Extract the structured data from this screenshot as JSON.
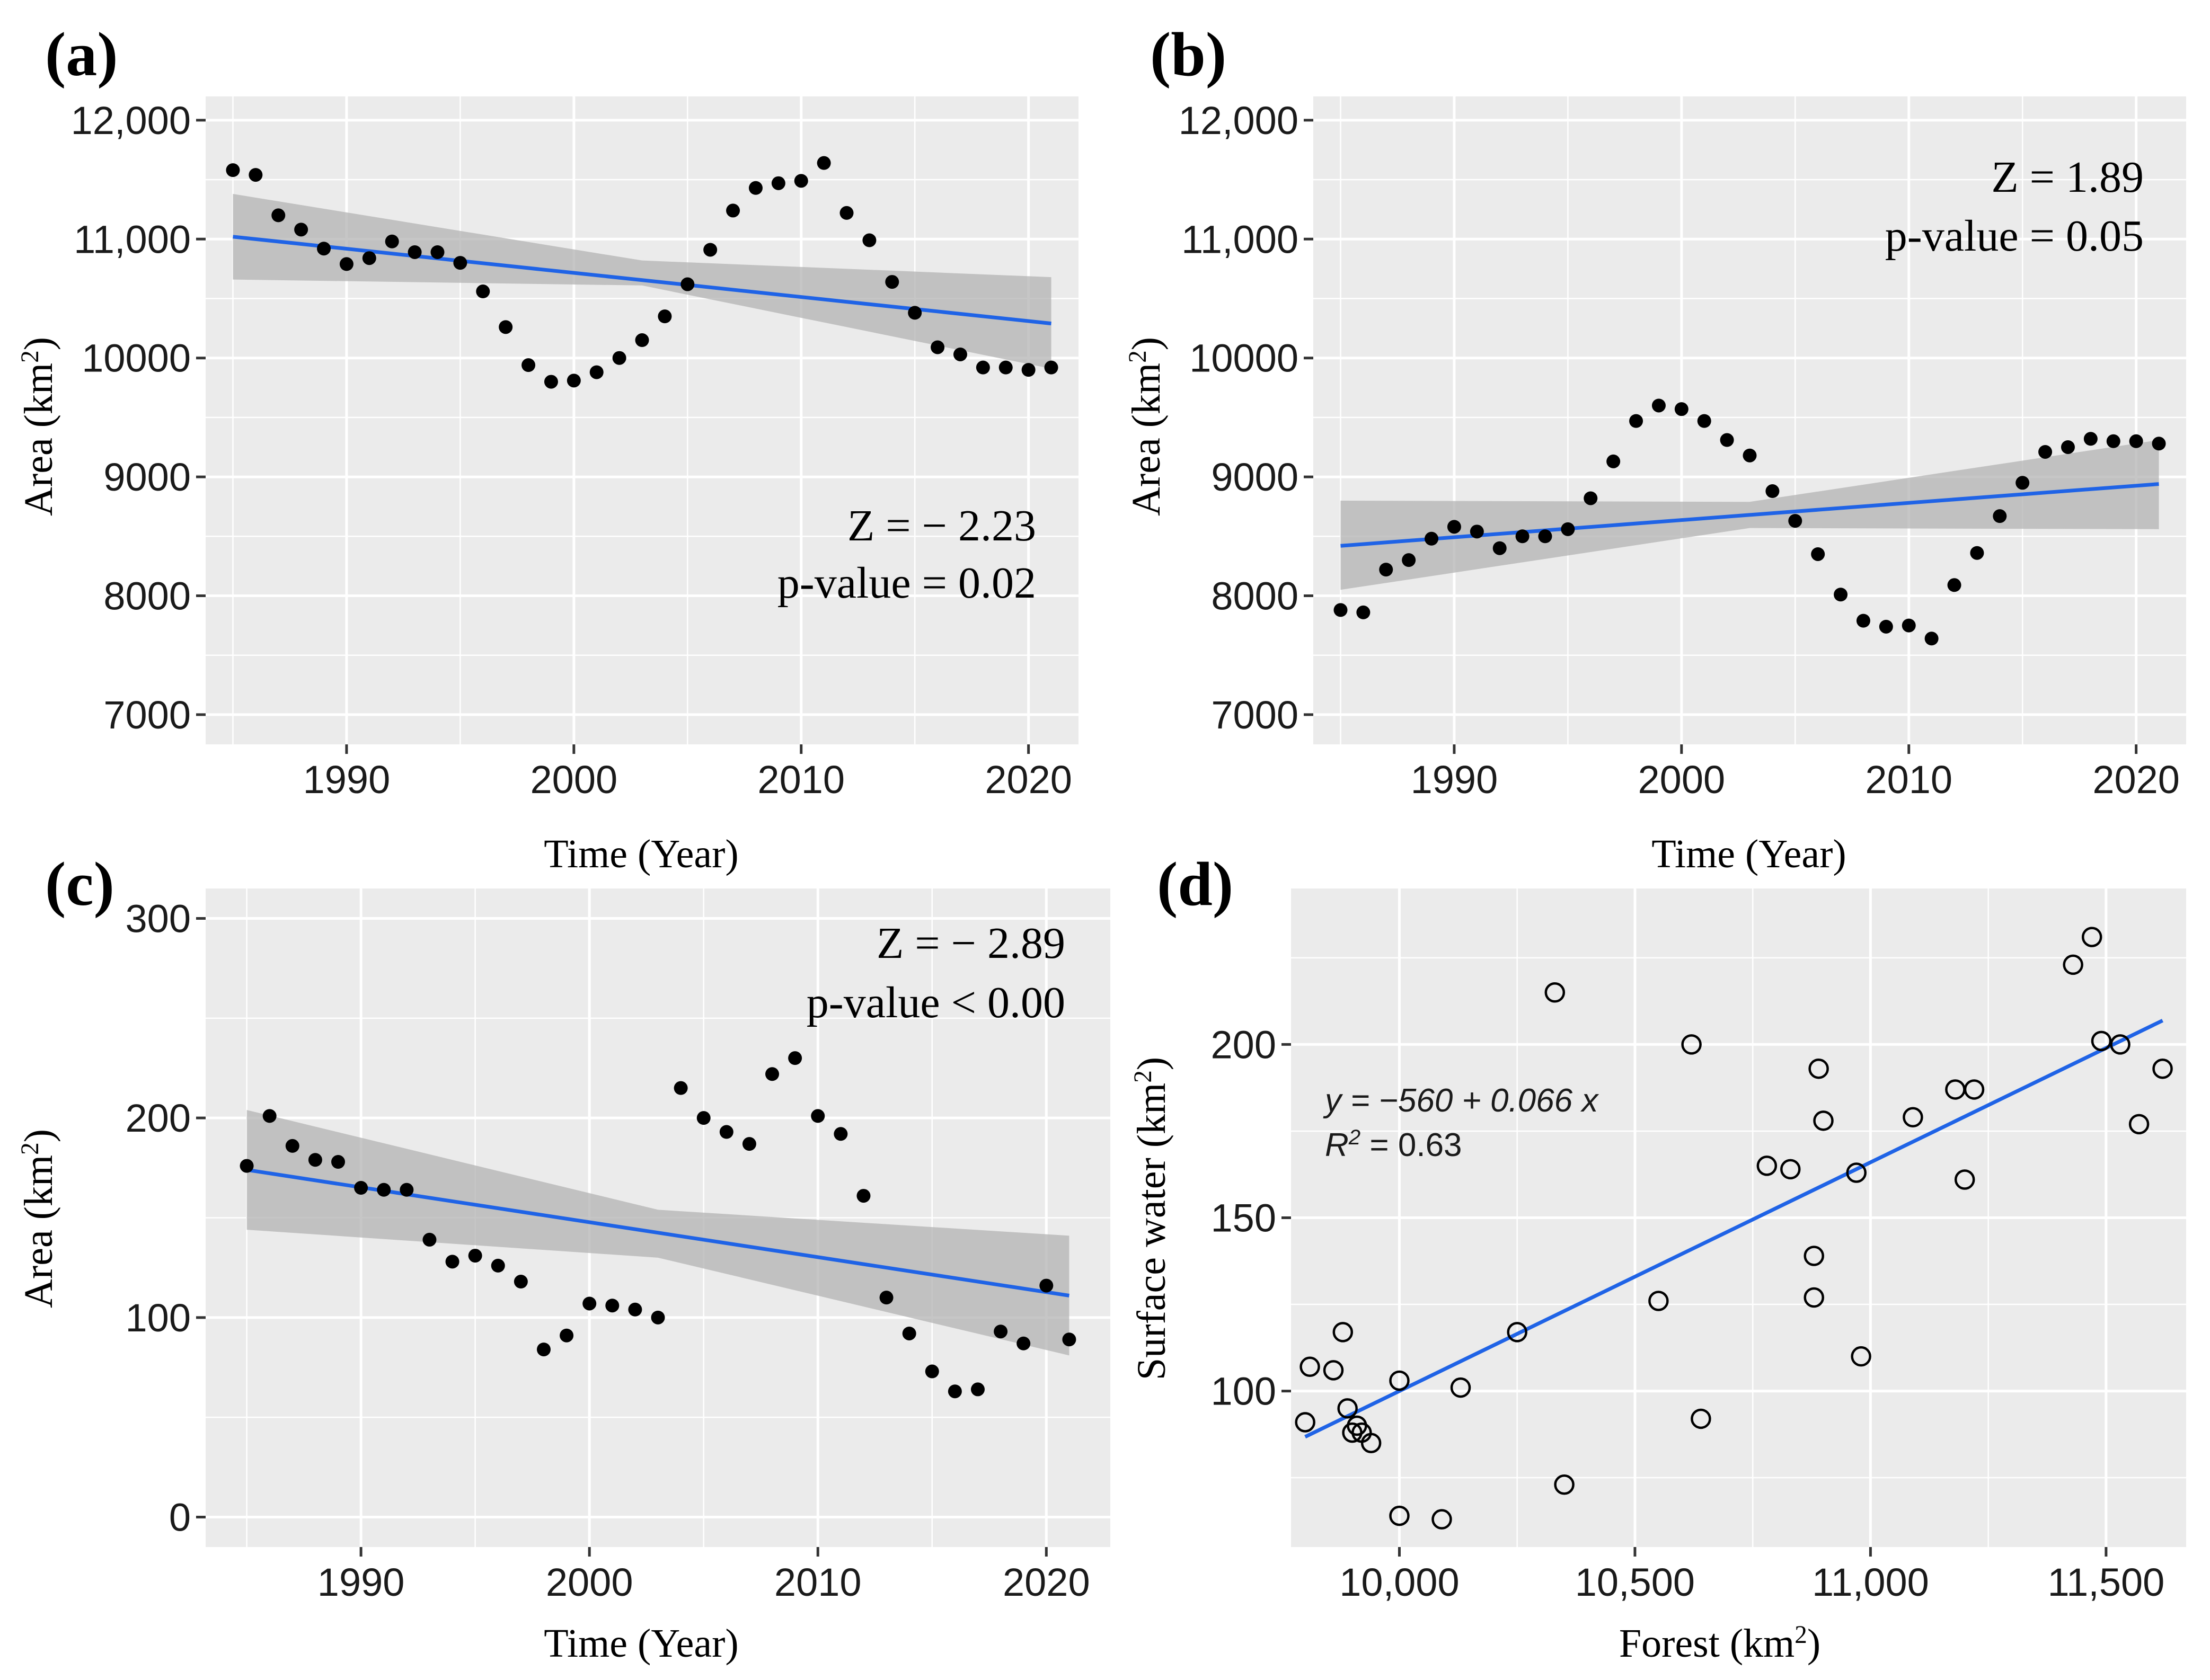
{
  "figure": {
    "charts": [
      {
        "id": "a",
        "tag": "(a)",
        "type": "scatter",
        "xlabel": "Time (Year)",
        "ylabel": "Area (km2)",
        "xlim": [
          1983.8,
          2022.2
        ],
        "ylim": [
          6750,
          12200
        ],
        "xticks": [
          1990,
          2000,
          2010,
          2020
        ],
        "xtick_labels": [
          "1990",
          "2000",
          "2010",
          "2020"
        ],
        "yticks": [
          7000,
          8000,
          9000,
          10000,
          11000,
          12000
        ],
        "ytick_labels": [
          "7000",
          "8000",
          "9000",
          "10000",
          "11,000",
          "12,000"
        ],
        "x": [
          1985,
          1986,
          1987,
          1988,
          1989,
          1990,
          1991,
          1992,
          1993,
          1994,
          1995,
          1996,
          1997,
          1998,
          1999,
          2000,
          2001,
          2002,
          2003,
          2004,
          2005,
          2006,
          2007,
          2008,
          2009,
          2010,
          2011,
          2012,
          2013,
          2014,
          2015,
          2016,
          2017,
          2018,
          2019,
          2020,
          2021
        ],
        "y": [
          11580,
          11540,
          11200,
          11080,
          10920,
          10790,
          10840,
          10980,
          10890,
          10890,
          10800,
          10560,
          10260,
          9940,
          9800,
          9810,
          9880,
          10000,
          10150,
          10350,
          10620,
          10910,
          11240,
          11430,
          11470,
          11490,
          11640,
          11220,
          10990,
          10640,
          10380,
          10090,
          10030,
          9920,
          9920,
          9900,
          9920
        ],
        "trend": {
          "x": [
            1985,
            2021
          ],
          "y": [
            11020,
            10290
          ]
        },
        "band": {
          "x": [
            1985,
            2003,
            2021
          ],
          "lower": [
            10660,
            10610,
            9910
          ],
          "upper": [
            11380,
            10820,
            10680
          ]
        },
        "annotation": [
          "Z = − 2.23",
          "p-value =  0.02"
        ],
        "annotation_position": "bottom-right"
      },
      {
        "id": "b",
        "tag": "(b)",
        "type": "scatter",
        "xlabel": "Time (Year)",
        "ylabel": "Area (km2)",
        "xlim": [
          1983.8,
          2022.2
        ],
        "ylim": [
          6750,
          12200
        ],
        "xticks": [
          1990,
          2000,
          2010,
          2020
        ],
        "xtick_labels": [
          "1990",
          "2000",
          "2010",
          "2020"
        ],
        "yticks": [
          7000,
          8000,
          9000,
          10000,
          11000,
          12000
        ],
        "ytick_labels": [
          "7000",
          "8000",
          "9000",
          "10000",
          "11,000",
          "12,000"
        ],
        "x": [
          1985,
          1986,
          1987,
          1988,
          1989,
          1990,
          1991,
          1992,
          1993,
          1994,
          1995,
          1996,
          1997,
          1998,
          1999,
          2000,
          2001,
          2002,
          2003,
          2004,
          2005,
          2006,
          2007,
          2008,
          2009,
          2010,
          2011,
          2012,
          2013,
          2014,
          2015,
          2016,
          2017,
          2018,
          2019,
          2020,
          2021
        ],
        "y": [
          7880,
          7860,
          8220,
          8300,
          8480,
          8580,
          8540,
          8400,
          8500,
          8500,
          8560,
          8820,
          9130,
          9470,
          9600,
          9570,
          9470,
          9310,
          9180,
          8880,
          8630,
          8350,
          8010,
          7790,
          7740,
          7750,
          7640,
          8090,
          8360,
          8670,
          8950,
          9210,
          9250,
          9320,
          9300,
          9300,
          9280
        ],
        "trend": {
          "x": [
            1985,
            2021
          ],
          "y": [
            8420,
            8940
          ]
        },
        "band": {
          "x": [
            1985,
            2003,
            2021
          ],
          "lower": [
            8050,
            8570,
            8560
          ],
          "upper": [
            8800,
            8790,
            9310
          ]
        },
        "annotation": [
          "Z =   1.89",
          "p-value =  0.05"
        ],
        "annotation_position": "top-right"
      },
      {
        "id": "c",
        "tag": "(c)",
        "type": "scatter",
        "xlabel": "Time (Year)",
        "ylabel": "Area (km2)",
        "xlim": [
          1983.2,
          2022.8
        ],
        "ylim": [
          -15,
          315
        ],
        "xticks": [
          1990,
          2000,
          2010,
          2020
        ],
        "xtick_labels": [
          "1990",
          "2000",
          "2010",
          "2020"
        ],
        "yticks": [
          0,
          100,
          200,
          300
        ],
        "ytick_labels": [
          "0",
          "100",
          "200",
          "300"
        ],
        "x": [
          1985,
          1986,
          1987,
          1988,
          1989,
          1990,
          1991,
          1992,
          1993,
          1994,
          1995,
          1996,
          1997,
          1998,
          1999,
          2000,
          2001,
          2002,
          2003,
          2004,
          2005,
          2006,
          2007,
          2008,
          2009,
          2010,
          2011,
          2012,
          2013,
          2014,
          2015,
          2016,
          2017,
          2018,
          2019,
          2020,
          2021
        ],
        "y": [
          176,
          201,
          186,
          179,
          178,
          165,
          164,
          164,
          139,
          128,
          131,
          126,
          118,
          84,
          91,
          107,
          106,
          104,
          100,
          215,
          200,
          193,
          187,
          222,
          230,
          201,
          192,
          161,
          110,
          92,
          73,
          63,
          64,
          93,
          87,
          116,
          89
        ],
        "trend": {
          "x": [
            1985,
            2021
          ],
          "y": [
            174,
            111
          ]
        },
        "band": {
          "x": [
            1985,
            2003,
            2021
          ],
          "lower": [
            144,
            130,
            81
          ],
          "upper": [
            204,
            154,
            141
          ]
        },
        "annotation": [
          "Z = − 2.89",
          "p-value <  0.00"
        ],
        "annotation_position": "top-right"
      },
      {
        "id": "d",
        "tag": "(d)",
        "type": "scatter",
        "xlabel": "Forest (km2)",
        "ylabel": "Surface water (km2)",
        "xlim": [
          9770,
          11670
        ],
        "ylim": [
          55,
          245
        ],
        "xticks": [
          10000,
          10500,
          11000,
          11500
        ],
        "xtick_labels": [
          "10,000",
          "10,500",
          "11,000",
          "11,500"
        ],
        "yticks": [
          100,
          150,
          200
        ],
        "ytick_labels": [
          "100",
          "150",
          "200"
        ],
        "x": [
          9800,
          9810,
          9860,
          9880,
          9890,
          9900,
          9910,
          9920,
          9940,
          10000,
          10000,
          10090,
          10130,
          10250,
          10330,
          10350,
          10550,
          10620,
          10640,
          10780,
          10830,
          10880,
          10880,
          10890,
          10900,
          10970,
          10980,
          11090,
          11180,
          11200,
          11220,
          11430,
          11470,
          11490,
          11530,
          11570,
          11620
        ],
        "y": [
          91,
          107,
          106,
          117,
          95,
          88,
          90,
          88,
          85,
          103,
          64,
          63,
          101,
          117,
          215,
          73,
          126,
          200,
          92,
          165,
          164,
          139,
          127,
          193,
          178,
          163,
          110,
          179,
          187,
          161,
          187,
          223,
          231,
          201,
          200,
          177,
          193
        ],
        "trend": {
          "x": [
            9800,
            11620
          ],
          "y": [
            86.8,
            206.9
          ]
        },
        "equation": "y = −560 + 0.066 x",
        "r2": "R2 = 0.63"
      }
    ]
  },
  "colors": {
    "trend": "#1f63e6",
    "points": "#000000",
    "band": "#b3b3b3",
    "panel": "#ebebeb"
  }
}
